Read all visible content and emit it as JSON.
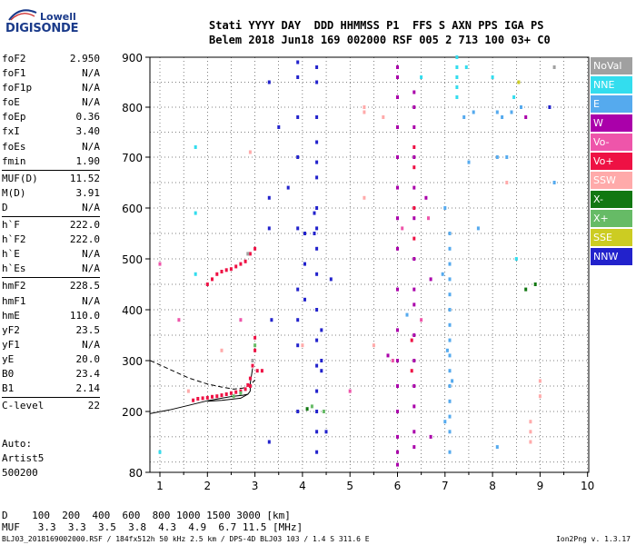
{
  "logo": {
    "line1": "Lowell",
    "line2": "DIGISONDE"
  },
  "header": {
    "line1": "Stati YYYY DAY  DDD HHMMSS P1  FFS S AXN PPS IGA PS",
    "line2": "Belem 2018 Jun18 169 002000 RSF 005 2 713 100 03+ C0"
  },
  "params": [
    {
      "k": "foF2",
      "v": "2.950"
    },
    {
      "k": "foF1",
      "v": "N/A"
    },
    {
      "k": "foF1p",
      "v": "N/A"
    },
    {
      "k": "foE",
      "v": "N/A"
    },
    {
      "k": "foEp",
      "v": "0.36"
    },
    {
      "k": "fxI",
      "v": "3.40"
    },
    {
      "k": "foEs",
      "v": "N/A"
    },
    {
      "k": "fmin",
      "v": "1.90"
    },
    {
      "sep": true
    },
    {
      "k": "MUF(D)",
      "v": "11.52"
    },
    {
      "k": "M(D)",
      "v": "3.91"
    },
    {
      "k": "D",
      "v": "N/A"
    },
    {
      "sep": true
    },
    {
      "k": "h`F",
      "v": "222.0"
    },
    {
      "k": "h`F2",
      "v": "222.0"
    },
    {
      "k": "h`E",
      "v": "N/A"
    },
    {
      "k": "h`Es",
      "v": "N/A"
    },
    {
      "sep": true
    },
    {
      "k": "hmF2",
      "v": "228.5"
    },
    {
      "k": "hmF1",
      "v": "N/A"
    },
    {
      "k": "hmE",
      "v": "110.0"
    },
    {
      "k": "yF2",
      "v": "23.5"
    },
    {
      "k": "yF1",
      "v": "N/A"
    },
    {
      "k": "yE",
      "v": "20.0"
    },
    {
      "k": "B0",
      "v": "23.4"
    },
    {
      "k": "B1",
      "v": "2.14"
    },
    {
      "sep": true
    },
    {
      "k": "C-level",
      "v": "22"
    }
  ],
  "auto": [
    "Auto:",
    "Artist5",
    "500200"
  ],
  "bottom": {
    "line1": "D    100  200  400  600  800 1000 1500 3000 [km]",
    "line2": "MUF   3.3  3.3  3.5  3.8  4.3  4.9  6.7 11.5 [MHz]"
  },
  "footer": {
    "left": "BLJ03_2018169002000.RSF / 184fx512h 50 kHz 2.5 km / DPS-4D BLJ03 103 / 1.4 S 311.6 E",
    "right": "Ion2Png v. 1.3.17"
  },
  "legend": [
    {
      "label": "NoVal",
      "color": "#a0a0a0"
    },
    {
      "label": "NNE",
      "color": "#33ddee"
    },
    {
      "label": "E",
      "color": "#55aaee"
    },
    {
      "label": "W",
      "color": "#aa00aa"
    },
    {
      "label": "Vo-",
      "color": "#ee55aa"
    },
    {
      "label": "Vo+",
      "color": "#ee1144"
    },
    {
      "label": "SSW",
      "color": "#ffaaaa"
    },
    {
      "label": "X-",
      "color": "#117711"
    },
    {
      "label": "X+",
      "color": "#66bb66"
    },
    {
      "label": "SSE",
      "color": "#cccc22"
    },
    {
      "label": "NNW",
      "color": "#2222cc"
    }
  ],
  "chart_data": {
    "type": "scatter",
    "title": "",
    "xlabel": "",
    "ylabel": "",
    "xlim": [
      0.8,
      10.0
    ],
    "ylim": [
      80,
      900
    ],
    "xticks": [
      "1",
      "2",
      "3",
      "4",
      "5",
      "6",
      "7",
      "8",
      "9",
      "10"
    ],
    "yticks": [
      "80",
      "200",
      "300",
      "400",
      "500",
      "600",
      "700",
      "800",
      "900"
    ],
    "ytick_values": [
      80,
      200,
      300,
      400,
      500,
      600,
      700,
      800,
      900
    ],
    "grid": true,
    "series": [
      {
        "color": "#ee1144",
        "points": [
          [
            1.7,
            222
          ],
          [
            1.8,
            225
          ],
          [
            1.9,
            226
          ],
          [
            2.0,
            227
          ],
          [
            2.1,
            229
          ],
          [
            2.2,
            230
          ],
          [
            2.3,
            232
          ],
          [
            2.4,
            234
          ],
          [
            2.5,
            236
          ],
          [
            2.6,
            238
          ],
          [
            2.7,
            240
          ],
          [
            2.8,
            244
          ],
          [
            2.85,
            252
          ],
          [
            2.9,
            265
          ],
          [
            2.95,
            290
          ],
          [
            3.0,
            320
          ],
          [
            3.0,
            345
          ],
          [
            3.05,
            280
          ],
          [
            3.15,
            280
          ],
          [
            2.9,
            250
          ],
          [
            2.0,
            450
          ],
          [
            2.1,
            460
          ],
          [
            2.2,
            470
          ],
          [
            2.3,
            475
          ],
          [
            2.4,
            478
          ],
          [
            2.5,
            480
          ],
          [
            2.6,
            485
          ],
          [
            2.7,
            490
          ],
          [
            2.8,
            495
          ],
          [
            2.9,
            510
          ],
          [
            3.0,
            520
          ],
          [
            6.3,
            280
          ],
          [
            6.3,
            340
          ],
          [
            6.35,
            540
          ],
          [
            6.35,
            600
          ],
          [
            6.35,
            680
          ],
          [
            6.35,
            720
          ]
        ]
      },
      {
        "color": "#aa00aa",
        "points": [
          [
            6.0,
            880
          ],
          [
            6.0,
            860
          ],
          [
            6.0,
            820
          ],
          [
            6.0,
            760
          ],
          [
            6.0,
            700
          ],
          [
            6.0,
            640
          ],
          [
            6.0,
            580
          ],
          [
            6.0,
            520
          ],
          [
            6.0,
            440
          ],
          [
            6.0,
            360
          ],
          [
            6.0,
            300
          ],
          [
            6.0,
            250
          ],
          [
            6.0,
            200
          ],
          [
            6.0,
            150
          ],
          [
            6.0,
            120
          ],
          [
            6.0,
            95
          ],
          [
            6.35,
            830
          ],
          [
            6.35,
            800
          ],
          [
            6.35,
            760
          ],
          [
            6.35,
            700
          ],
          [
            6.35,
            640
          ],
          [
            6.35,
            580
          ],
          [
            6.35,
            500
          ],
          [
            6.35,
            440
          ],
          [
            6.35,
            410
          ],
          [
            6.35,
            350
          ],
          [
            6.35,
            300
          ],
          [
            6.35,
            250
          ],
          [
            6.35,
            210
          ],
          [
            6.35,
            160
          ],
          [
            6.35,
            130
          ],
          [
            5.8,
            310
          ],
          [
            6.7,
            150
          ],
          [
            6.7,
            460
          ],
          [
            8.7,
            780
          ],
          [
            6.6,
            620
          ]
        ]
      },
      {
        "color": "#55aaee",
        "points": [
          [
            7.1,
            550
          ],
          [
            7.1,
            520
          ],
          [
            7.1,
            490
          ],
          [
            7.1,
            460
          ],
          [
            7.1,
            430
          ],
          [
            7.1,
            400
          ],
          [
            7.1,
            370
          ],
          [
            7.1,
            340
          ],
          [
            7.1,
            310
          ],
          [
            7.1,
            280
          ],
          [
            7.1,
            250
          ],
          [
            7.1,
            220
          ],
          [
            7.1,
            190
          ],
          [
            7.1,
            160
          ],
          [
            7.1,
            120
          ],
          [
            7.05,
            320
          ],
          [
            7.15,
            260
          ],
          [
            7.0,
            600
          ],
          [
            6.95,
            470
          ],
          [
            7.0,
            180
          ],
          [
            7.4,
            780
          ],
          [
            7.6,
            790
          ],
          [
            8.1,
            790
          ],
          [
            8.2,
            780
          ],
          [
            8.4,
            790
          ],
          [
            8.6,
            800
          ],
          [
            7.5,
            690
          ],
          [
            8.1,
            700
          ],
          [
            8.3,
            700
          ],
          [
            7.7,
            560
          ],
          [
            6.2,
            390
          ],
          [
            8.1,
            130
          ],
          [
            9.3,
            650
          ]
        ]
      },
      {
        "color": "#33ddee",
        "points": [
          [
            7.25,
            900
          ],
          [
            7.25,
            880
          ],
          [
            7.25,
            860
          ],
          [
            7.25,
            840
          ],
          [
            7.25,
            820
          ],
          [
            7.45,
            880
          ],
          [
            8.0,
            860
          ],
          [
            8.45,
            820
          ],
          [
            1.75,
            720
          ],
          [
            1.75,
            590
          ],
          [
            1.75,
            470
          ],
          [
            1.0,
            120
          ],
          [
            6.5,
            860
          ],
          [
            8.5,
            500
          ]
        ]
      },
      {
        "color": "#2222cc",
        "points": [
          [
            3.3,
            850
          ],
          [
            3.5,
            760
          ],
          [
            3.3,
            620
          ],
          [
            3.9,
            890
          ],
          [
            3.9,
            860
          ],
          [
            3.9,
            780
          ],
          [
            3.9,
            700
          ],
          [
            3.9,
            560
          ],
          [
            3.9,
            440
          ],
          [
            3.9,
            380
          ],
          [
            3.9,
            330
          ],
          [
            4.05,
            550
          ],
          [
            4.05,
            490
          ],
          [
            4.05,
            420
          ],
          [
            3.9,
            200
          ],
          [
            4.3,
            880
          ],
          [
            4.3,
            850
          ],
          [
            4.3,
            780
          ],
          [
            4.3,
            730
          ],
          [
            4.3,
            690
          ],
          [
            4.3,
            660
          ],
          [
            4.3,
            600
          ],
          [
            4.3,
            560
          ],
          [
            4.3,
            520
          ],
          [
            4.3,
            470
          ],
          [
            4.3,
            400
          ],
          [
            4.3,
            340
          ],
          [
            4.3,
            290
          ],
          [
            4.3,
            240
          ],
          [
            4.3,
            200
          ],
          [
            4.3,
            160
          ],
          [
            4.3,
            120
          ],
          [
            4.4,
            300
          ],
          [
            4.4,
            280
          ],
          [
            4.4,
            360
          ],
          [
            4.6,
            460
          ],
          [
            4.5,
            160
          ],
          [
            3.3,
            140
          ],
          [
            3.7,
            640
          ],
          [
            4.25,
            590
          ],
          [
            4.25,
            550
          ],
          [
            9.2,
            800
          ],
          [
            3.3,
            560
          ],
          [
            3.35,
            380
          ]
        ]
      },
      {
        "color": "#ffaaaa",
        "points": [
          [
            2.3,
            320
          ],
          [
            4.0,
            330
          ],
          [
            5.3,
            800
          ],
          [
            5.3,
            790
          ],
          [
            5.3,
            620
          ],
          [
            5.5,
            330
          ],
          [
            5.7,
            780
          ],
          [
            8.3,
            650
          ],
          [
            9.0,
            260
          ],
          [
            9.0,
            230
          ],
          [
            8.8,
            180
          ],
          [
            8.8,
            160
          ],
          [
            8.8,
            140
          ],
          [
            1.6,
            240
          ],
          [
            2.9,
            710
          ]
        ]
      },
      {
        "color": "#ee55aa",
        "points": [
          [
            5.0,
            240
          ],
          [
            5.9,
            300
          ],
          [
            6.1,
            560
          ],
          [
            6.5,
            380
          ],
          [
            2.7,
            380
          ],
          [
            6.65,
            580
          ],
          [
            1.0,
            490
          ],
          [
            1.4,
            380
          ]
        ]
      },
      {
        "color": "#66bb66",
        "points": [
          [
            2.55,
            230
          ],
          [
            2.7,
            236
          ],
          [
            3.0,
            330
          ],
          [
            4.45,
            200
          ],
          [
            4.2,
            210
          ]
        ]
      },
      {
        "color": "#117711",
        "points": [
          [
            4.1,
            205
          ],
          [
            8.9,
            450
          ],
          [
            8.7,
            440
          ]
        ]
      },
      {
        "color": "#cccc22",
        "points": [
          [
            8.55,
            850
          ]
        ]
      },
      {
        "color": "#a0a0a0",
        "points": [
          [
            2.95,
            300
          ],
          [
            2.85,
            510
          ],
          [
            9.3,
            880
          ]
        ]
      }
    ],
    "curves": [
      {
        "style": "solid",
        "points": [
          [
            0.8,
            196
          ],
          [
            1.2,
            203
          ],
          [
            1.6,
            212
          ],
          [
            2.0,
            221
          ],
          [
            2.3,
            226
          ],
          [
            2.55,
            230
          ],
          [
            2.75,
            232
          ],
          [
            2.85,
            234
          ],
          [
            2.9,
            240
          ],
          [
            2.9,
            255
          ],
          [
            2.95,
            285
          ]
        ]
      },
      {
        "style": "solid",
        "points": [
          [
            2.85,
            234
          ],
          [
            2.7,
            226
          ],
          [
            2.3,
            222
          ],
          [
            2.0,
            220
          ]
        ]
      },
      {
        "style": "dashed",
        "points": [
          [
            0.8,
            300
          ],
          [
            1.2,
            283
          ],
          [
            1.6,
            266
          ],
          [
            2.0,
            254
          ],
          [
            2.3,
            248
          ],
          [
            2.55,
            244
          ],
          [
            2.75,
            246
          ],
          [
            2.9,
            252
          ],
          [
            3.0,
            262
          ]
        ]
      }
    ]
  }
}
